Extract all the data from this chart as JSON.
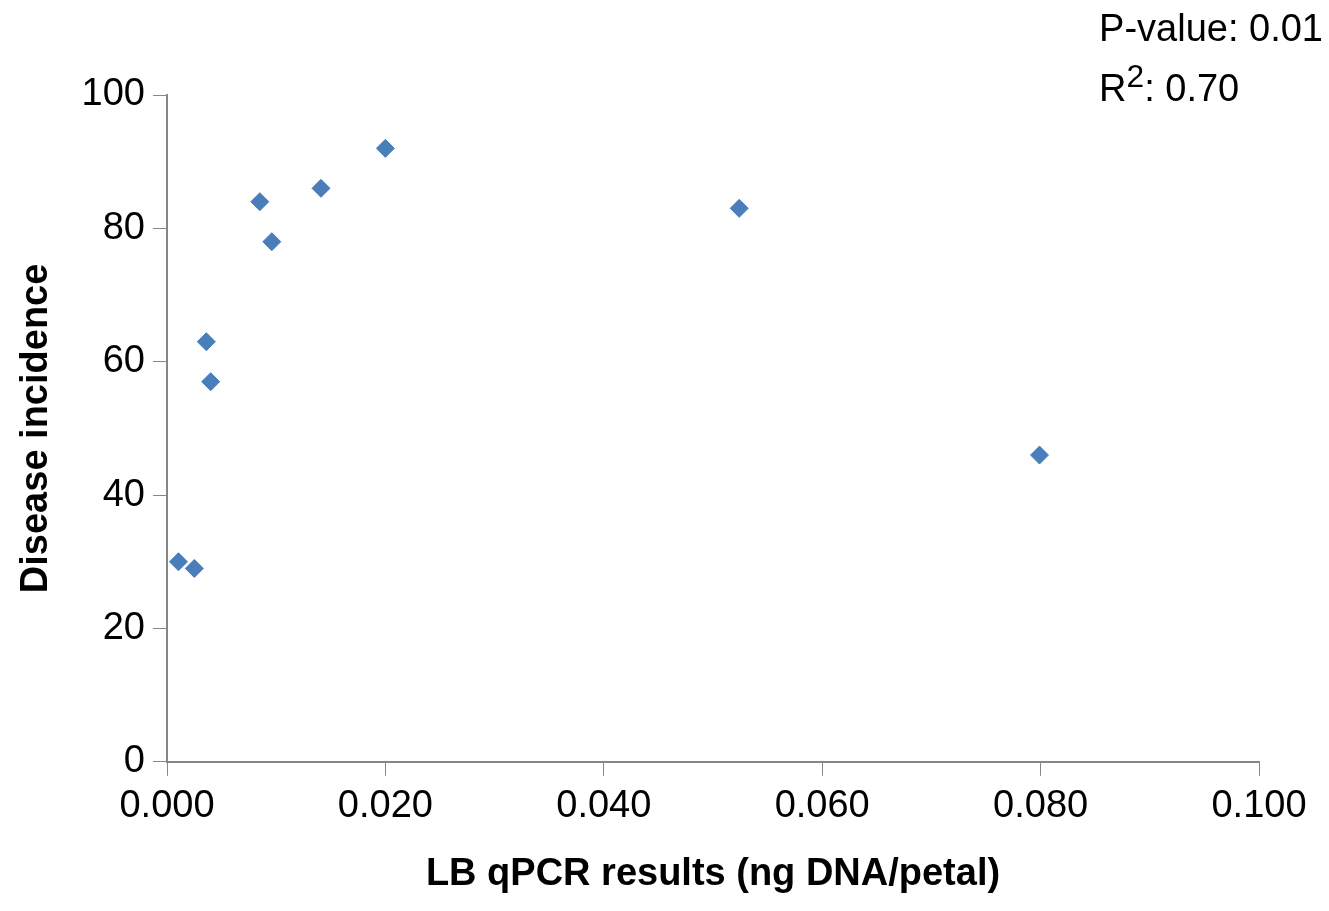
{
  "chart_data": {
    "type": "scatter",
    "xlabel": "LB qPCR results (ng DNA/petal)",
    "ylabel": "Disease incidence",
    "x": [
      0.00105,
      0.0025,
      0.0036,
      0.004,
      0.0085,
      0.0096,
      0.0141,
      0.02,
      0.0524,
      0.0799
    ],
    "series": [
      {
        "color": "#4a7ebb",
        "values": [
          30,
          29,
          63,
          57,
          84,
          78,
          86,
          92,
          83,
          46
        ]
      }
    ],
    "xlim": [
      0,
      0.1
    ],
    "xticks": [
      {
        "value": 0,
        "label": "0.000"
      },
      {
        "value": 0.02,
        "label": "0.020"
      },
      {
        "value": 0.04,
        "label": "0.040"
      },
      {
        "value": 0.06,
        "label": "0.060"
      },
      {
        "value": 0.08,
        "label": "0.080"
      },
      {
        "value": 0.1,
        "label": "0.100"
      }
    ],
    "ylim": [
      0,
      100
    ],
    "yticks": [
      0,
      20,
      40,
      60,
      80,
      100
    ],
    "marker": "diamond",
    "grid": false,
    "legend": false,
    "annotations": [
      "P-value: 0.01",
      "R$^{2}$: 0.70"
    ]
  }
}
